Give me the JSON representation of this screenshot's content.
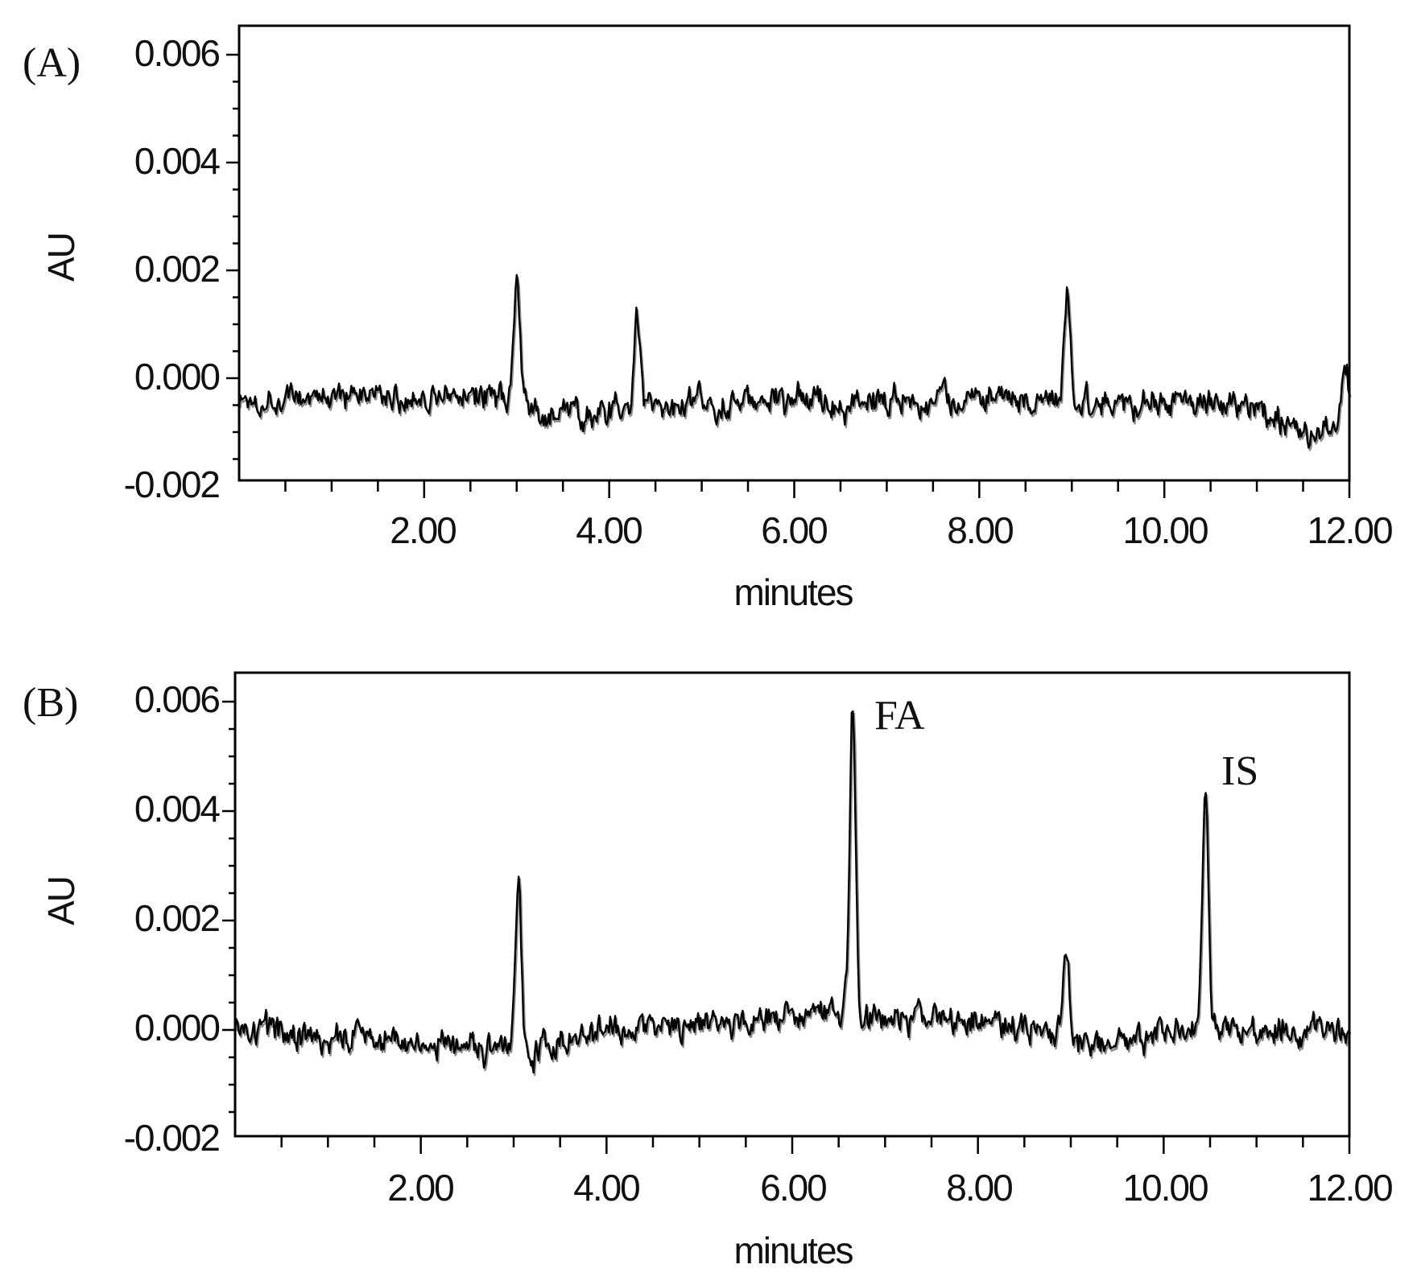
{
  "chart_data": [
    {
      "type": "line",
      "panel_label": "(A)",
      "xlabel": "minutes",
      "ylabel": "AU",
      "xlim": [
        0,
        12
      ],
      "ylim": [
        -0.002,
        0.0065
      ],
      "x_ticks": [
        "2.00",
        "4.00",
        "6.00",
        "8.00",
        "10.00",
        "12.00"
      ],
      "y_ticks": [
        "0.006",
        "0.004",
        "0.002",
        "0.000",
        "-0.002"
      ],
      "series": [
        {
          "baseline": [
            [
              0,
              -0.0004
            ],
            [
              3.0,
              -0.0003
            ],
            [
              3.2,
              -0.0007
            ],
            [
              6.0,
              -0.0004
            ],
            [
              9.0,
              -0.0004
            ],
            [
              10.5,
              -0.0004
            ],
            [
              11.3,
              -0.0008
            ],
            [
              11.5,
              -0.0011
            ],
            [
              12.0,
              -0.0007
            ]
          ],
          "noise_amplitude": 0.0004,
          "peaks": [
            {
              "x": 3.0,
              "y": 0.0018
            },
            {
              "x": 4.3,
              "y": 0.0012
            },
            {
              "x": 8.95,
              "y": 0.0016
            },
            {
              "x": 11.95,
              "y": 0.0004
            }
          ]
        }
      ],
      "annotations": []
    },
    {
      "type": "line",
      "panel_label": "(B)",
      "xlabel": "minutes",
      "ylabel": "AU",
      "xlim": [
        0,
        12
      ],
      "ylim": [
        -0.002,
        0.0065
      ],
      "x_ticks": [
        "2.00",
        "4.00",
        "6.00",
        "8.00",
        "10.00",
        "12.00"
      ],
      "y_ticks": [
        "0.006",
        "0.004",
        "0.002",
        "0.000",
        "-0.002"
      ],
      "series": [
        {
          "baseline": [
            [
              0,
              0.0
            ],
            [
              2.0,
              -0.0002
            ],
            [
              3.2,
              -0.0004
            ],
            [
              4.0,
              0.0
            ],
            [
              6.0,
              0.0002
            ],
            [
              8.0,
              0.0002
            ],
            [
              9.4,
              -0.0003
            ],
            [
              10.0,
              0.0
            ],
            [
              12.0,
              0.0
            ]
          ],
          "noise_amplitude": 0.0004,
          "peaks": [
            {
              "x": 3.05,
              "y": 0.0027
            },
            {
              "x": 6.65,
              "y": 0.0058
            },
            {
              "x": 8.95,
              "y": 0.0015
            },
            {
              "x": 10.45,
              "y": 0.0045
            }
          ]
        }
      ],
      "annotations": [
        {
          "text": "FA",
          "x": 6.65,
          "y": 0.0058
        },
        {
          "text": "IS",
          "x": 10.45,
          "y": 0.0045
        }
      ]
    }
  ]
}
